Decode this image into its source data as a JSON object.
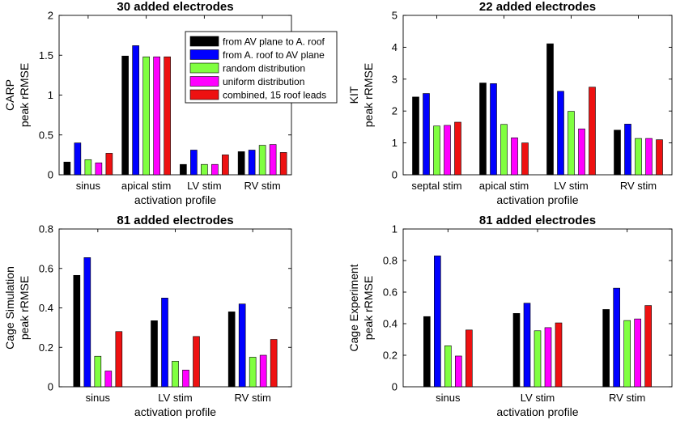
{
  "legend": [
    {
      "label": "from AV plane to A. roof",
      "color": "#000000"
    },
    {
      "label": "from A. roof to AV plane",
      "color": "#0000ff"
    },
    {
      "label": "random distribution",
      "color": "#80ff40"
    },
    {
      "label": "uniform distribution",
      "color": "#ff00ff"
    },
    {
      "label": "combined, 15 roof leads",
      "color": "#ee1111"
    }
  ],
  "chart_data": [
    {
      "type": "bar",
      "title": "30 added electrodes",
      "xlabel": "activation profile",
      "ylabel": [
        "CARP",
        "peak rRMSE"
      ],
      "categories": [
        "sinus",
        "apical stim",
        "LV stim",
        "RV stim"
      ],
      "ylim": [
        0,
        2
      ],
      "yticks": [
        "0",
        "0.5",
        "1",
        "1.5",
        "2"
      ],
      "ytick_values": [
        0,
        0.5,
        1,
        1.5,
        2
      ],
      "series": [
        {
          "name": "from AV plane to A. roof",
          "values": [
            0.16,
            1.49,
            0.13,
            0.29
          ]
        },
        {
          "name": "from A. roof to AV plane",
          "values": [
            0.4,
            1.62,
            0.31,
            0.31
          ]
        },
        {
          "name": "random distribution",
          "values": [
            0.19,
            1.48,
            0.13,
            0.37
          ]
        },
        {
          "name": "uniform distribution",
          "values": [
            0.15,
            1.48,
            0.13,
            0.38
          ]
        },
        {
          "name": "combined, 15 roof leads",
          "values": [
            0.27,
            1.48,
            0.25,
            0.28
          ]
        }
      ]
    },
    {
      "type": "bar",
      "title": "22 added electrodes",
      "xlabel": "activation profile",
      "ylabel": [
        "KIT",
        "peak rRMSE"
      ],
      "categories": [
        "septal stim",
        "apical stim",
        "LV stim",
        "RV stim"
      ],
      "ylim": [
        0,
        5
      ],
      "yticks": [
        "0",
        "1",
        "2",
        "3",
        "4",
        "5"
      ],
      "ytick_values": [
        0,
        1,
        2,
        3,
        4,
        5
      ],
      "series": [
        {
          "name": "from AV plane to A. roof",
          "values": [
            2.44,
            2.88,
            4.11,
            1.4
          ]
        },
        {
          "name": "from A. roof to AV plane",
          "values": [
            2.55,
            2.86,
            2.62,
            1.59
          ]
        },
        {
          "name": "random distribution",
          "values": [
            1.53,
            1.58,
            1.99,
            1.14
          ]
        },
        {
          "name": "uniform distribution",
          "values": [
            1.55,
            1.16,
            1.44,
            1.14
          ]
        },
        {
          "name": "combined, 15 roof leads",
          "values": [
            1.65,
            1.0,
            2.75,
            1.1
          ]
        }
      ]
    },
    {
      "type": "bar",
      "title": "81 added electrodes",
      "xlabel": "activation profile",
      "ylabel": [
        "Cage Simulation",
        "peak rRMSE"
      ],
      "categories": [
        "sinus",
        "LV stim",
        "RV stim"
      ],
      "ylim": [
        0,
        0.8
      ],
      "yticks": [
        "0",
        "0.2",
        "0.4",
        "0.6",
        "0.8"
      ],
      "ytick_values": [
        0,
        0.2,
        0.4,
        0.6,
        0.8
      ],
      "series": [
        {
          "name": "from AV plane to A. roof",
          "values": [
            0.565,
            0.335,
            0.38
          ]
        },
        {
          "name": "from A. roof to AV plane",
          "values": [
            0.655,
            0.45,
            0.42
          ]
        },
        {
          "name": "random distribution",
          "values": [
            0.155,
            0.13,
            0.15
          ]
        },
        {
          "name": "uniform distribution",
          "values": [
            0.08,
            0.085,
            0.16
          ]
        },
        {
          "name": "combined, 15 roof leads",
          "values": [
            0.28,
            0.255,
            0.24
          ]
        }
      ]
    },
    {
      "type": "bar",
      "title": "81 added electrodes",
      "xlabel": "activation profile",
      "ylabel": [
        "Cage Experiment",
        "peak rRMSE"
      ],
      "categories": [
        "sinus",
        "LV stim",
        "RV stim"
      ],
      "ylim": [
        0,
        1
      ],
      "yticks": [
        "0",
        "0.2",
        "0.4",
        "0.6",
        "0.8",
        "1"
      ],
      "ytick_values": [
        0,
        0.2,
        0.4,
        0.6,
        0.8,
        1
      ],
      "series": [
        {
          "name": "from AV plane to A. roof",
          "values": [
            0.445,
            0.465,
            0.49
          ]
        },
        {
          "name": "from A. roof to AV plane",
          "values": [
            0.83,
            0.53,
            0.625
          ]
        },
        {
          "name": "random distribution",
          "values": [
            0.26,
            0.355,
            0.42
          ]
        },
        {
          "name": "uniform distribution",
          "values": [
            0.195,
            0.375,
            0.43
          ]
        },
        {
          "name": "combined, 15 roof leads",
          "values": [
            0.36,
            0.405,
            0.515
          ]
        }
      ]
    }
  ]
}
